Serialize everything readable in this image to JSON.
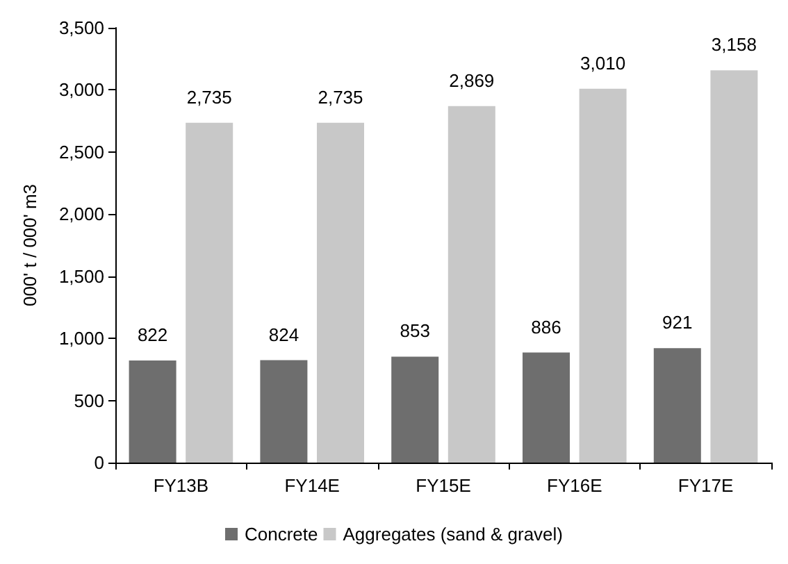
{
  "chart_data": {
    "type": "bar",
    "ylabel": "000' t / 000' m3",
    "categories": [
      "FY13B",
      "FY14E",
      "FY15E",
      "FY16E",
      "FY17E"
    ],
    "series": [
      {
        "name": "Concrete",
        "color": "#6e6e6e",
        "values": [
          822,
          824,
          853,
          886,
          921
        ],
        "value_labels": [
          "822",
          "824",
          "853",
          "886",
          "921"
        ]
      },
      {
        "name": "Aggregates (sand & gravel)",
        "color": "#c8c8c8",
        "values": [
          2735,
          2735,
          2869,
          3010,
          3158
        ],
        "value_labels": [
          "2,735",
          "2,735",
          "2,869",
          "3,010",
          "3,158"
        ]
      }
    ],
    "ylim": [
      0,
      3500
    ],
    "yticks": [
      0,
      500,
      {
        "value": 1000,
        "label": "1,000"
      },
      {
        "value": 1500,
        "label": "1,500"
      },
      {
        "value": 2000,
        "label": "2,000"
      },
      {
        "value": 2500,
        "label": "2,500"
      },
      {
        "value": 3000,
        "label": "3,000"
      },
      {
        "value": 3500,
        "label": "3,500"
      }
    ],
    "grid": false,
    "legend": "bottom"
  }
}
